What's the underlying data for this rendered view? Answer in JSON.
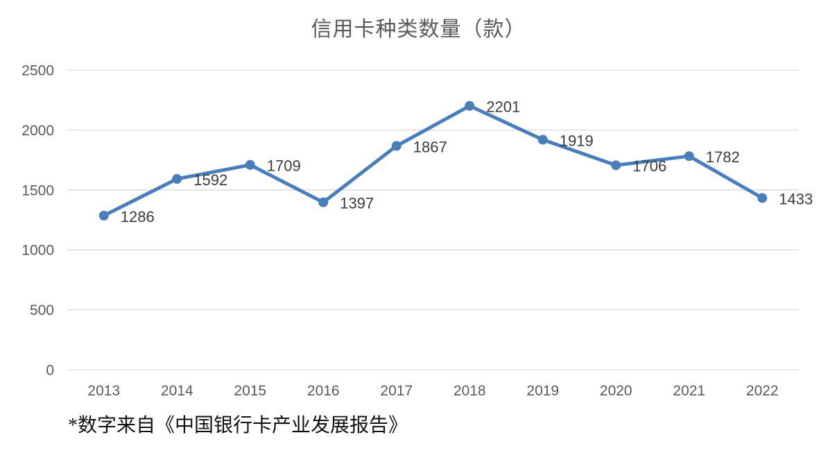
{
  "chart_data": {
    "type": "line",
    "title": "信用卡种类数量（款）",
    "categories": [
      "2013",
      "2014",
      "2015",
      "2016",
      "2017",
      "2018",
      "2019",
      "2020",
      "2021",
      "2022"
    ],
    "values": [
      1286,
      1592,
      1709,
      1397,
      1867,
      2201,
      1919,
      1706,
      1782,
      1433
    ],
    "xlabel": "",
    "ylabel": "",
    "ylim": [
      0,
      2500
    ],
    "ytick_step": 500,
    "ytick_labels": [
      "0",
      "500",
      "1000",
      "1500",
      "2000",
      "2500"
    ],
    "grid": true,
    "legend_position": "none",
    "data_labels": true,
    "data_labels_position": "right",
    "marker": "circle"
  },
  "footnote": {
    "text": "*数字来自《中国银行卡产业发展报告》"
  },
  "colors": {
    "line": "#4A7EBB",
    "marker": "#4A7EBB",
    "gridline": "#D9D9D9",
    "axis_text": "#595959",
    "data_label_text": "#3B3B3B",
    "title_text": "#595959",
    "background": "#FFFFFF"
  }
}
